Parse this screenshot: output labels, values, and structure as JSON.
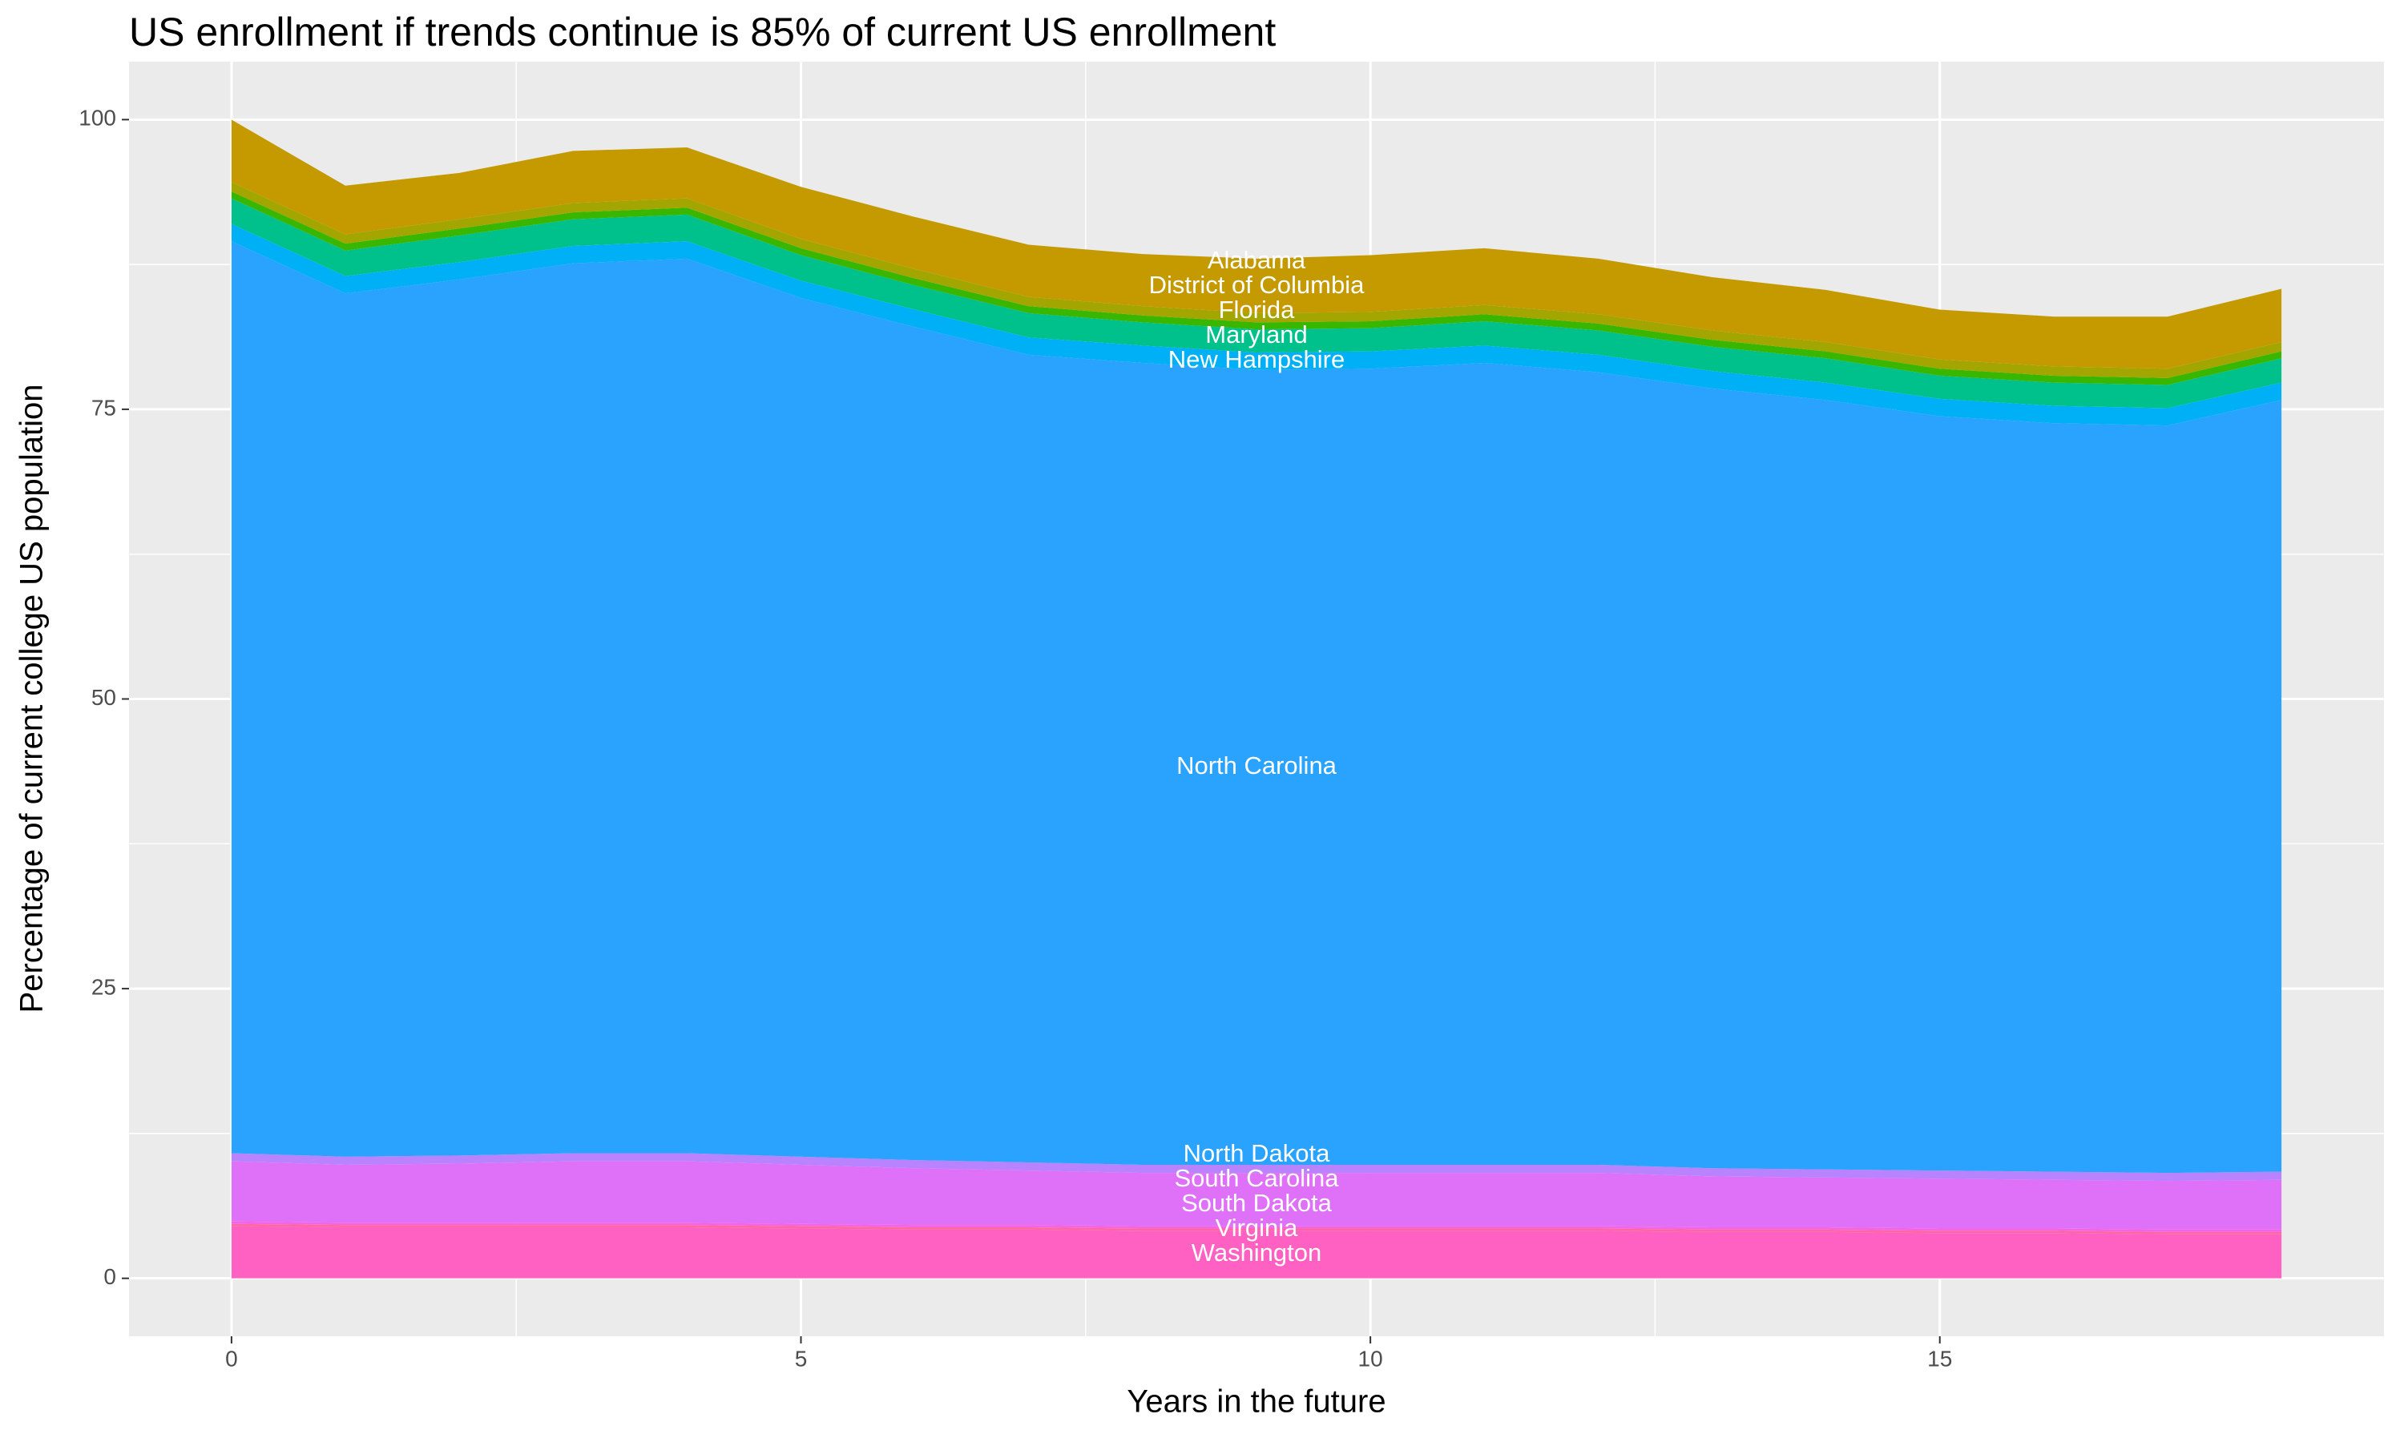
{
  "chart_data": {
    "type": "area",
    "title": "US enrollment if trends continue is 85% of current US enrollment",
    "x_label": "Years in the future",
    "y_label": "Percentage of current college US population",
    "x": [
      0,
      1,
      2,
      3,
      4,
      5,
      6,
      7,
      8,
      9,
      10,
      11,
      12,
      13,
      14,
      15,
      16,
      17,
      18
    ],
    "xlim": [
      -0.9,
      18.9
    ],
    "xticks": [
      0,
      5,
      10,
      15
    ],
    "ylim": [
      -5,
      105
    ],
    "yticks": [
      0,
      25,
      50,
      75,
      100
    ],
    "grid": true,
    "stacked": true,
    "series": [
      {
        "name": "Washington",
        "color": "#FF61C3",
        "values": [
          4.5,
          4.4,
          4.4,
          4.4,
          4.4,
          4.3,
          4.2,
          4.2,
          4.1,
          4.1,
          4.1,
          4.1,
          4.1,
          4.0,
          4.0,
          3.9,
          3.9,
          3.8,
          3.8
        ]
      },
      {
        "name": "Virginia",
        "color": "#FF67A4",
        "values": [
          0.2,
          0.2,
          0.2,
          0.2,
          0.2,
          0.2,
          0.2,
          0.2,
          0.2,
          0.2,
          0.2,
          0.2,
          0.2,
          0.2,
          0.2,
          0.2,
          0.2,
          0.2,
          0.2
        ]
      },
      {
        "name": "South Dakota",
        "color": "#F564E3",
        "values": [
          0.2,
          0.2,
          0.2,
          0.2,
          0.2,
          0.2,
          0.2,
          0.2,
          0.2,
          0.2,
          0.2,
          0.2,
          0.2,
          0.2,
          0.2,
          0.2,
          0.2,
          0.2,
          0.2
        ]
      },
      {
        "name": "South Carolina",
        "color": "#DF70F8",
        "values": [
          5.2,
          5.0,
          5.1,
          5.3,
          5.3,
          5.1,
          4.9,
          4.7,
          4.6,
          4.6,
          4.6,
          4.6,
          4.6,
          4.4,
          4.3,
          4.3,
          4.2,
          4.2,
          4.3
        ]
      },
      {
        "name": "North Dakota",
        "color": "#B983FF",
        "values": [
          0.7,
          0.7,
          0.7,
          0.7,
          0.7,
          0.7,
          0.7,
          0.7,
          0.7,
          0.7,
          0.7,
          0.7,
          0.7,
          0.7,
          0.7,
          0.7,
          0.7,
          0.7,
          0.7
        ]
      },
      {
        "name": "North Carolina",
        "color": "#29A3FF",
        "values": [
          78.7,
          74.5,
          75.6,
          76.8,
          77.2,
          74.1,
          71.9,
          69.7,
          69.2,
          68.6,
          68.7,
          69.2,
          68.4,
          67.3,
          66.4,
          65.1,
          64.6,
          64.5,
          66.6
        ]
      },
      {
        "name": "New Hampshire",
        "color": "#00B0F6",
        "values": [
          1.5,
          1.5,
          1.5,
          1.5,
          1.5,
          1.5,
          1.5,
          1.5,
          1.5,
          1.5,
          1.5,
          1.5,
          1.5,
          1.5,
          1.5,
          1.5,
          1.5,
          1.5,
          1.5
        ]
      },
      {
        "name": "Maryland",
        "color": "#00C08B",
        "values": [
          2.2,
          2.2,
          2.3,
          2.3,
          2.3,
          2.2,
          2.1,
          2.1,
          2.0,
          2.0,
          2.0,
          2.1,
          2.1,
          2.1,
          2.1,
          2.0,
          2.0,
          2.0,
          2.1
        ]
      },
      {
        "name": "Florida",
        "color": "#39B600",
        "values": [
          0.6,
          0.6,
          0.6,
          0.6,
          0.6,
          0.6,
          0.6,
          0.6,
          0.6,
          0.6,
          0.6,
          0.6,
          0.6,
          0.6,
          0.6,
          0.6,
          0.6,
          0.6,
          0.6
        ]
      },
      {
        "name": "District of Columbia",
        "color": "#A3A500",
        "values": [
          0.8,
          0.8,
          0.8,
          0.8,
          0.8,
          0.8,
          0.8,
          0.8,
          0.8,
          0.8,
          0.8,
          0.8,
          0.8,
          0.8,
          0.8,
          0.8,
          0.8,
          0.8,
          0.8
        ]
      },
      {
        "name": "Alabama",
        "color": "#C49A00",
        "values": [
          5.4,
          4.2,
          4.0,
          4.5,
          4.4,
          4.5,
          4.5,
          4.5,
          4.5,
          4.7,
          4.9,
          4.9,
          4.8,
          4.6,
          4.5,
          4.3,
          4.3,
          4.5,
          4.6
        ]
      }
    ]
  }
}
